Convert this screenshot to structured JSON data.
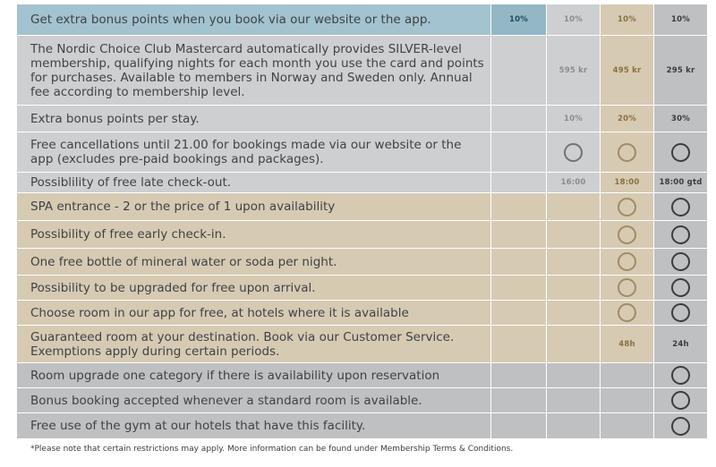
{
  "colors": {
    "teal_row": "#a2c3cf",
    "teal_col": "#93b7c5",
    "silver": "#cecfd1",
    "gold": "#d6cab3",
    "grey": "#bfc0c2",
    "white": "#ffffff"
  },
  "rows": [
    {
      "text": "Get extra bonus points when you book via our website or the app.",
      "scheme": "teal",
      "height": 35,
      "cells": [
        {
          "type": "text",
          "value": "10%"
        },
        {
          "type": "text",
          "value": "10%"
        },
        {
          "type": "text",
          "value": "10%"
        },
        {
          "type": "text",
          "value": "10%"
        }
      ]
    },
    {
      "text": "The Nordic Choice Club Mastercard automatically provides SILVER-level membership, qualifying nights for each month you use the card and points for purchases. Available to members in Norway and Sweden only. Annual fee according to membership level.",
      "scheme": "silver",
      "height": 78,
      "cells": [
        {
          "type": "empty"
        },
        {
          "type": "text",
          "value": "595 kr"
        },
        {
          "type": "text",
          "value": "495 kr"
        },
        {
          "type": "text",
          "value": "295 kr"
        }
      ]
    },
    {
      "text": "Extra bonus points per stay.",
      "scheme": "silver",
      "height": 30,
      "cells": [
        {
          "type": "empty"
        },
        {
          "type": "text",
          "value": "10%"
        },
        {
          "type": "text",
          "value": "20%"
        },
        {
          "type": "text",
          "value": "30%"
        }
      ]
    },
    {
      "text": "Free cancellations until 21.00 for bookings made via our website or the app (excludes pre-paid bookings and packages).",
      "scheme": "silver",
      "height": 45,
      "cells": [
        {
          "type": "empty"
        },
        {
          "type": "circle"
        },
        {
          "type": "circle"
        },
        {
          "type": "circle"
        }
      ]
    },
    {
      "text": "Possiblility of free late check-out.",
      "scheme": "silver",
      "height": 23,
      "cells": [
        {
          "type": "empty"
        },
        {
          "type": "text",
          "value": "16:00"
        },
        {
          "type": "text",
          "value": "18:00"
        },
        {
          "type": "text",
          "value": "18:00 gtd"
        }
      ]
    },
    {
      "text": "SPA entrance - 2 or the price of 1 upon availability",
      "scheme": "gold",
      "height": 31,
      "cells": [
        {
          "type": "empty"
        },
        {
          "type": "empty"
        },
        {
          "type": "circle"
        },
        {
          "type": "circle"
        }
      ]
    },
    {
      "text": "Possibility of free early check-in.",
      "scheme": "gold",
      "height": 31,
      "cells": [
        {
          "type": "empty"
        },
        {
          "type": "empty"
        },
        {
          "type": "circle"
        },
        {
          "type": "circle"
        }
      ]
    },
    {
      "text": "One free bottle of mineral water or soda per night.",
      "scheme": "gold",
      "height": 30,
      "cells": [
        {
          "type": "empty"
        },
        {
          "type": "empty"
        },
        {
          "type": "circle"
        },
        {
          "type": "circle"
        }
      ]
    },
    {
      "text": "Possibility to be upgraded for free upon arrival.",
      "scheme": "gold",
      "height": 28,
      "cells": [
        {
          "type": "empty"
        },
        {
          "type": "empty"
        },
        {
          "type": "circle"
        },
        {
          "type": "circle"
        }
      ]
    },
    {
      "text": "Choose room in our app for free, at hotels where it is available",
      "scheme": "gold",
      "height": 28,
      "cells": [
        {
          "type": "empty"
        },
        {
          "type": "empty"
        },
        {
          "type": "circle"
        },
        {
          "type": "circle"
        }
      ]
    },
    {
      "text": "Guaranteed room at your destination. Book via our Customer Service. Exemptions apply during certain periods.",
      "scheme": "gold",
      "height": 42,
      "cells": [
        {
          "type": "empty"
        },
        {
          "type": "empty"
        },
        {
          "type": "text",
          "value": "48h"
        },
        {
          "type": "text",
          "value": "24h"
        }
      ]
    },
    {
      "text": "Room upgrade one category if there is availability upon reservation",
      "scheme": "grey",
      "height": 28,
      "cells": [
        {
          "type": "empty"
        },
        {
          "type": "empty"
        },
        {
          "type": "empty"
        },
        {
          "type": "circle"
        }
      ]
    },
    {
      "text": "Bonus booking accepted whenever a standard room is available.",
      "scheme": "grey",
      "height": 28,
      "cells": [
        {
          "type": "empty"
        },
        {
          "type": "empty"
        },
        {
          "type": "empty"
        },
        {
          "type": "circle"
        }
      ]
    },
    {
      "text": "Free use of the gym at our hotels that have this facility.",
      "scheme": "grey",
      "height": 29,
      "cells": [
        {
          "type": "empty"
        },
        {
          "type": "empty"
        },
        {
          "type": "empty"
        },
        {
          "type": "circle"
        }
      ]
    }
  ],
  "footnote": "*Please note that certain restrictions may apply. More information can be found under Membership Terms & Conditions."
}
